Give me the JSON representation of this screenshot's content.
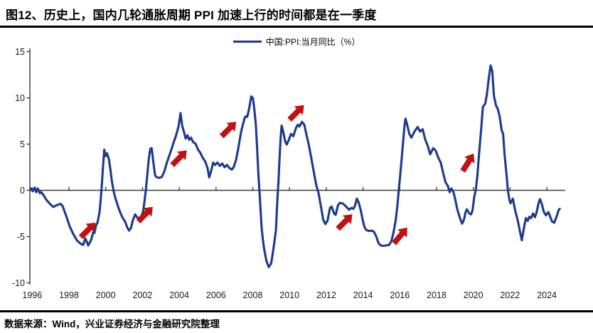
{
  "title": "图12、历史上，国内几轮通胀周期 PPI 加速上行的时间都是在一季度",
  "source": "数据来源：Wind，兴业证券经济与金融研究院整理",
  "legend": {
    "label": "中国:PPI:当月同比（%）"
  },
  "colors": {
    "line": "#1c3a8e",
    "arrow": "#c01111",
    "axis": "#3a3a3a",
    "tick_text": "#1a1a1a",
    "title_text": "#000000"
  },
  "chart_data": {
    "type": "line",
    "title": "中国:PPI:当月同比（%）",
    "xlabel": "",
    "ylabel": "",
    "xlim": [
      1995.85,
      2025.0
    ],
    "ylim": [
      -10,
      15
    ],
    "grid": false,
    "legend_position": "top-center",
    "x_tick_labels": [
      "1996",
      "1998",
      "2000",
      "2002",
      "2004",
      "2006",
      "2008",
      "2010",
      "2012",
      "2014",
      "2016",
      "2018",
      "2020",
      "2022",
      "2024"
    ],
    "x_ticks": [
      1996,
      1998,
      2000,
      2002,
      2004,
      2006,
      2008,
      2010,
      2012,
      2014,
      2016,
      2018,
      2020,
      2022,
      2024
    ],
    "y_tick_labels": [
      "15",
      "10",
      "5",
      "0",
      "-5",
      "-10"
    ],
    "y_ticks": [
      15,
      10,
      5,
      0,
      -5,
      -10
    ],
    "series": [
      {
        "name": "中国:PPI:当月同比（%）",
        "points": [
          [
            1995.91,
            0.2
          ],
          [
            1996.03,
            -0.1
          ],
          [
            1996.14,
            0.3
          ],
          [
            1996.22,
            -0.2
          ],
          [
            1996.3,
            0.2
          ],
          [
            1996.41,
            -0.3
          ],
          [
            1996.49,
            -0.2
          ],
          [
            1996.61,
            -0.5
          ],
          [
            1996.76,
            -1.0
          ],
          [
            1996.96,
            -1.45
          ],
          [
            1997.15,
            -1.8
          ],
          [
            1997.34,
            -1.6
          ],
          [
            1997.54,
            -1.45
          ],
          [
            1997.65,
            -1.7
          ],
          [
            1997.85,
            -2.75
          ],
          [
            1998.04,
            -3.9
          ],
          [
            1998.23,
            -4.7
          ],
          [
            1998.43,
            -5.4
          ],
          [
            1998.62,
            -5.75
          ],
          [
            1998.77,
            -5.9
          ],
          [
            1998.89,
            -5.2
          ],
          [
            1999.05,
            -5.95
          ],
          [
            1999.2,
            -5.4
          ],
          [
            1999.32,
            -4.55
          ],
          [
            1999.39,
            -4.6
          ],
          [
            1999.47,
            -3.8
          ],
          [
            1999.55,
            -3.5
          ],
          [
            1999.66,
            -2.4
          ],
          [
            1999.72,
            -1.1
          ],
          [
            1999.8,
            0.9
          ],
          [
            1999.86,
            2.8
          ],
          [
            1999.92,
            4.4
          ],
          [
            1999.99,
            3.7
          ],
          [
            2000.07,
            4.0
          ],
          [
            2000.17,
            3.4
          ],
          [
            2000.25,
            2.3
          ],
          [
            2000.34,
            0.9
          ],
          [
            2000.42,
            0.0
          ],
          [
            2000.52,
            -0.8
          ],
          [
            2000.63,
            -1.5
          ],
          [
            2000.75,
            -2.2
          ],
          [
            2000.9,
            -2.9
          ],
          [
            2001.06,
            -3.4
          ],
          [
            2001.17,
            -4.0
          ],
          [
            2001.27,
            -4.35
          ],
          [
            2001.37,
            -4.1
          ],
          [
            2001.48,
            -3.2
          ],
          [
            2001.6,
            -2.6
          ],
          [
            2001.7,
            -2.9
          ],
          [
            2001.83,
            -3.1
          ],
          [
            2001.93,
            -2.9
          ],
          [
            2002.04,
            -2.2
          ],
          [
            2002.11,
            -1.2
          ],
          [
            2002.18,
            0.0
          ],
          [
            2002.27,
            1.9
          ],
          [
            2002.35,
            3.5
          ],
          [
            2002.43,
            4.5
          ],
          [
            2002.5,
            4.55
          ],
          [
            2002.6,
            2.9
          ],
          [
            2002.69,
            1.6
          ],
          [
            2002.79,
            1.4
          ],
          [
            2002.92,
            1.35
          ],
          [
            2003.05,
            1.45
          ],
          [
            2003.18,
            2.0
          ],
          [
            2003.31,
            2.9
          ],
          [
            2003.44,
            3.65
          ],
          [
            2003.57,
            4.4
          ],
          [
            2003.7,
            5.2
          ],
          [
            2003.83,
            5.95
          ],
          [
            2003.96,
            6.9
          ],
          [
            2004.07,
            8.35
          ],
          [
            2004.16,
            7.0
          ],
          [
            2004.25,
            6.35
          ],
          [
            2004.35,
            5.6
          ],
          [
            2004.45,
            5.95
          ],
          [
            2004.54,
            5.45
          ],
          [
            2004.64,
            5.7
          ],
          [
            2004.76,
            5.2
          ],
          [
            2004.89,
            5.05
          ],
          [
            2005.02,
            4.4
          ],
          [
            2005.15,
            4.05
          ],
          [
            2005.28,
            3.5
          ],
          [
            2005.41,
            3.15
          ],
          [
            2005.54,
            2.4
          ],
          [
            2005.63,
            1.4
          ],
          [
            2005.72,
            2.0
          ],
          [
            2005.85,
            3.0
          ],
          [
            2005.95,
            2.75
          ],
          [
            2006.08,
            3.0
          ],
          [
            2006.21,
            2.65
          ],
          [
            2006.34,
            2.9
          ],
          [
            2006.47,
            2.5
          ],
          [
            2006.6,
            2.75
          ],
          [
            2006.73,
            2.4
          ],
          [
            2006.86,
            2.25
          ],
          [
            2006.96,
            2.5
          ],
          [
            2007.09,
            3.3
          ],
          [
            2007.18,
            4.2
          ],
          [
            2007.27,
            5.2
          ],
          [
            2007.37,
            6.35
          ],
          [
            2007.48,
            7.25
          ],
          [
            2007.57,
            7.9
          ],
          [
            2007.63,
            8.0
          ],
          [
            2007.7,
            7.95
          ],
          [
            2007.8,
            8.8
          ],
          [
            2007.92,
            10.15
          ],
          [
            2008.01,
            9.95
          ],
          [
            2008.09,
            8.7
          ],
          [
            2008.17,
            7.0
          ],
          [
            2008.24,
            4.4
          ],
          [
            2008.3,
            1.9
          ],
          [
            2008.36,
            0.0
          ],
          [
            2008.42,
            -2.0
          ],
          [
            2008.48,
            -4.0
          ],
          [
            2008.55,
            -5.3
          ],
          [
            2008.62,
            -6.35
          ],
          [
            2008.74,
            -7.6
          ],
          [
            2008.87,
            -8.3
          ],
          [
            2009.0,
            -7.9
          ],
          [
            2009.12,
            -6.35
          ],
          [
            2009.26,
            -4.3
          ],
          [
            2009.34,
            -1.0
          ],
          [
            2009.4,
            1.0
          ],
          [
            2009.46,
            3.5
          ],
          [
            2009.52,
            5.8
          ],
          [
            2009.57,
            7.0
          ],
          [
            2009.66,
            6.3
          ],
          [
            2009.76,
            5.3
          ],
          [
            2009.85,
            4.95
          ],
          [
            2009.95,
            5.4
          ],
          [
            2010.08,
            6.1
          ],
          [
            2010.21,
            5.85
          ],
          [
            2010.34,
            6.7
          ],
          [
            2010.45,
            7.1
          ],
          [
            2010.54,
            6.9
          ],
          [
            2010.67,
            7.4
          ],
          [
            2010.8,
            7.1
          ],
          [
            2010.93,
            5.95
          ],
          [
            2011.06,
            4.8
          ],
          [
            2011.19,
            3.4
          ],
          [
            2011.32,
            2.0
          ],
          [
            2011.45,
            0.6
          ],
          [
            2011.58,
            -0.3
          ],
          [
            2011.71,
            -1.75
          ],
          [
            2011.83,
            -3.15
          ],
          [
            2011.95,
            -3.65
          ],
          [
            2012.07,
            -3.25
          ],
          [
            2012.2,
            -1.9
          ],
          [
            2012.29,
            -1.75
          ],
          [
            2012.42,
            -2.5
          ],
          [
            2012.51,
            -2.65
          ],
          [
            2012.64,
            -1.6
          ],
          [
            2012.74,
            -1.35
          ],
          [
            2012.87,
            -1.4
          ],
          [
            2013.0,
            -1.6
          ],
          [
            2013.12,
            -1.85
          ],
          [
            2013.24,
            -2.1
          ],
          [
            2013.36,
            -1.9
          ],
          [
            2013.48,
            -2.0
          ],
          [
            2013.58,
            -1.55
          ],
          [
            2013.66,
            -0.9
          ],
          [
            2013.76,
            -1.3
          ],
          [
            2013.87,
            -2.1
          ],
          [
            2013.98,
            -3.2
          ],
          [
            2014.08,
            -4.0
          ],
          [
            2014.18,
            -4.3
          ],
          [
            2014.33,
            -4.4
          ],
          [
            2014.48,
            -4.35
          ],
          [
            2014.6,
            -4.5
          ],
          [
            2014.72,
            -5.0
          ],
          [
            2014.84,
            -5.7
          ],
          [
            2014.96,
            -5.95
          ],
          [
            2015.1,
            -6.0
          ],
          [
            2015.26,
            -5.95
          ],
          [
            2015.42,
            -5.9
          ],
          [
            2015.54,
            -5.5
          ],
          [
            2015.65,
            -4.6
          ],
          [
            2015.77,
            -3.3
          ],
          [
            2015.86,
            -1.8
          ],
          [
            2015.94,
            -0.1
          ],
          [
            2016.02,
            1.6
          ],
          [
            2016.1,
            3.4
          ],
          [
            2016.18,
            5.3
          ],
          [
            2016.25,
            6.9
          ],
          [
            2016.31,
            7.75
          ],
          [
            2016.4,
            7.1
          ],
          [
            2016.52,
            6.1
          ],
          [
            2016.63,
            5.7
          ],
          [
            2016.78,
            6.3
          ],
          [
            2016.97,
            6.85
          ],
          [
            2017.1,
            6.35
          ],
          [
            2017.24,
            6.6
          ],
          [
            2017.39,
            5.45
          ],
          [
            2017.52,
            4.8
          ],
          [
            2017.65,
            3.9
          ],
          [
            2017.82,
            4.55
          ],
          [
            2017.95,
            4.3
          ],
          [
            2018.1,
            3.5
          ],
          [
            2018.23,
            3.0
          ],
          [
            2018.36,
            1.85
          ],
          [
            2018.49,
            0.85
          ],
          [
            2018.62,
            0.45
          ],
          [
            2018.71,
            -0.2
          ],
          [
            2018.81,
            0.2
          ],
          [
            2018.92,
            -0.2
          ],
          [
            2019.0,
            -0.85
          ],
          [
            2019.12,
            -2.0
          ],
          [
            2019.21,
            -2.6
          ],
          [
            2019.29,
            -3.1
          ],
          [
            2019.39,
            -3.6
          ],
          [
            2019.47,
            -3.3
          ],
          [
            2019.52,
            -2.9
          ],
          [
            2019.58,
            -2.35
          ],
          [
            2019.65,
            -2.05
          ],
          [
            2019.72,
            -2.3
          ],
          [
            2019.78,
            -2.5
          ],
          [
            2019.88,
            -2.6
          ],
          [
            2019.96,
            -2.1
          ],
          [
            2020.05,
            -0.7
          ],
          [
            2020.13,
            0.0
          ],
          [
            2020.22,
            1.6
          ],
          [
            2020.31,
            3.9
          ],
          [
            2020.42,
            6.5
          ],
          [
            2020.52,
            9.0
          ],
          [
            2020.65,
            9.4
          ],
          [
            2020.74,
            10.4
          ],
          [
            2020.84,
            12.1
          ],
          [
            2020.94,
            13.5
          ],
          [
            2021.03,
            12.9
          ],
          [
            2021.12,
            10.2
          ],
          [
            2021.23,
            9.2
          ],
          [
            2021.33,
            8.8
          ],
          [
            2021.43,
            8.0
          ],
          [
            2021.54,
            6.5
          ],
          [
            2021.62,
            6.1
          ],
          [
            2021.7,
            3.9
          ],
          [
            2021.81,
            1.6
          ],
          [
            2021.88,
            0.0
          ],
          [
            2021.96,
            -1.0
          ],
          [
            2022.02,
            -1.4
          ],
          [
            2022.15,
            -0.9
          ],
          [
            2022.28,
            -2.2
          ],
          [
            2022.41,
            -3.2
          ],
          [
            2022.54,
            -4.5
          ],
          [
            2022.64,
            -5.4
          ],
          [
            2022.76,
            -4.0
          ],
          [
            2022.86,
            -3.0
          ],
          [
            2022.96,
            -3.3
          ],
          [
            2023.05,
            -2.85
          ],
          [
            2023.14,
            -3.0
          ],
          [
            2023.25,
            -2.5
          ],
          [
            2023.35,
            -2.9
          ],
          [
            2023.44,
            -2.4
          ],
          [
            2023.56,
            -1.3
          ],
          [
            2023.63,
            -0.95
          ],
          [
            2023.73,
            -1.5
          ],
          [
            2023.83,
            -2.3
          ],
          [
            2023.95,
            -2.7
          ],
          [
            2024.08,
            -2.35
          ],
          [
            2024.19,
            -2.9
          ],
          [
            2024.28,
            -3.35
          ],
          [
            2024.4,
            -3.5
          ],
          [
            2024.53,
            -2.85
          ],
          [
            2024.64,
            -2.15
          ],
          [
            2024.7,
            -2.0
          ]
        ]
      }
    ],
    "annotations": {
      "arrows": [
        {
          "x": 1999.03,
          "y": -4.3,
          "rot": -45
        },
        {
          "x": 2002.15,
          "y": -2.6,
          "rot": -45
        },
        {
          "x": 2004.0,
          "y": 3.5,
          "rot": -45
        },
        {
          "x": 2006.69,
          "y": 6.6,
          "rot": -45
        },
        {
          "x": 2010.38,
          "y": 8.4,
          "rot": -45
        },
        {
          "x": 2013.01,
          "y": -3.4,
          "rot": -45
        },
        {
          "x": 2016.03,
          "y": -4.9,
          "rot": -50
        },
        {
          "x": 2019.71,
          "y": 3.0,
          "rot": -58
        }
      ]
    }
  }
}
